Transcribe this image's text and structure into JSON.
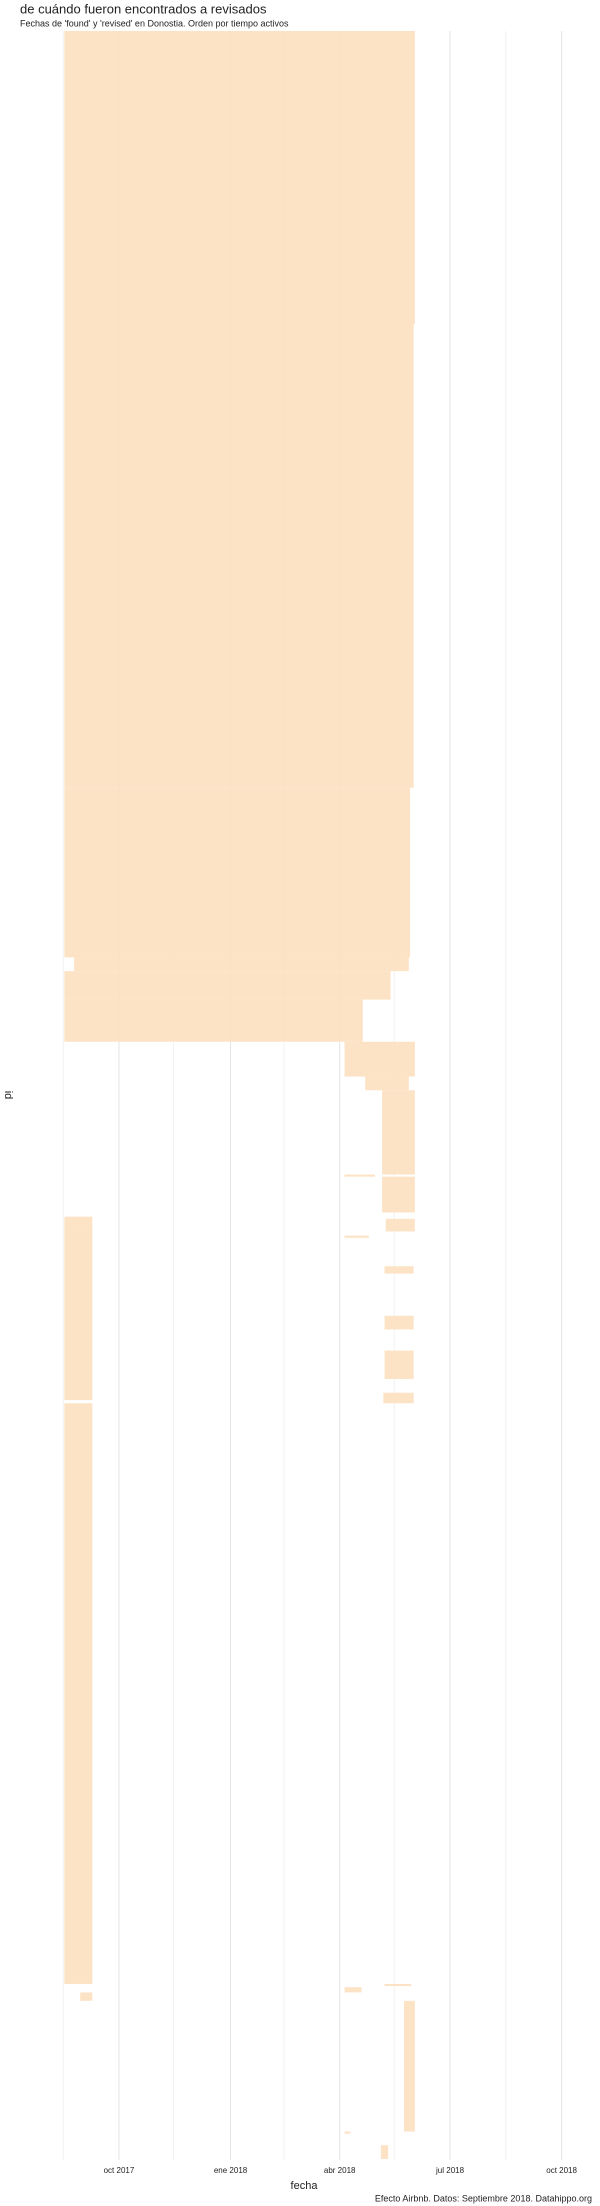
{
  "chart_data": {
    "type": "range",
    "title": "de cuándo fueron encontrados a revisados",
    "subtitle": "Fechas de 'found' y 'revised' en Donostia. Orden por tiempo activos",
    "x_label": "fecha",
    "y_label": "id",
    "caption": "Efecto Airbnb. Datos: Septiembre 2018. Datahippo.org",
    "color": "#fde0bf",
    "xlim": [
      "2017-08-01",
      "2018-10-31"
    ],
    "xticks": [
      {
        "value": "2017-10-01",
        "label": "oct 2017"
      },
      {
        "value": "2018-01-01",
        "label": "ene 2018"
      },
      {
        "value": "2018-04-01",
        "label": "abr 2018"
      },
      {
        "value": "2018-07-01",
        "label": "jul 2018"
      },
      {
        "value": "2018-10-01",
        "label": "oct 2018"
      }
    ],
    "xminor": [
      "2017-08-16",
      "2017-11-15",
      "2018-02-14",
      "2018-05-16",
      "2018-08-16"
    ],
    "ylim": [
      0,
      2020
    ],
    "grid": true,
    "segments": [
      {
        "from_id": 0,
        "to_id": 278,
        "start": "2017-08-17",
        "end": "2018-06-02"
      },
      {
        "from_id": 278,
        "to_id": 718,
        "start": "2017-08-17",
        "end": "2018-06-01"
      },
      {
        "from_id": 718,
        "to_id": 879,
        "start": "2017-08-17",
        "end": "2018-05-29"
      },
      {
        "from_id": 879,
        "to_id": 892,
        "start": "2017-08-25",
        "end": "2018-05-28"
      },
      {
        "from_id": 892,
        "to_id": 919,
        "start": "2017-08-17",
        "end": "2018-05-13"
      },
      {
        "from_id": 919,
        "to_id": 959,
        "start": "2017-08-17",
        "end": "2018-04-20"
      },
      {
        "from_id": 959,
        "to_id": 992,
        "start": "2018-04-05",
        "end": "2018-06-02"
      },
      {
        "from_id": 992,
        "to_id": 1005,
        "start": "2018-04-22",
        "end": "2018-05-28"
      },
      {
        "from_id": 1005,
        "to_id": 1085,
        "start": "2018-05-06",
        "end": "2018-06-02"
      },
      {
        "from_id": 1085,
        "to_id": 1087,
        "start": "2018-04-05",
        "end": "2018-04-30"
      },
      {
        "from_id": 1087,
        "to_id": 1121,
        "start": "2018-05-06",
        "end": "2018-06-02"
      },
      {
        "from_id": 1125,
        "to_id": 1132,
        "start": "2017-08-17",
        "end": "2017-09-09"
      },
      {
        "from_id": 1127,
        "to_id": 1139,
        "start": "2018-05-09",
        "end": "2018-06-02"
      },
      {
        "from_id": 1132,
        "to_id": 1299,
        "start": "2017-08-17",
        "end": "2017-09-09"
      },
      {
        "from_id": 1143,
        "to_id": 1145,
        "start": "2018-04-05",
        "end": "2018-04-25"
      },
      {
        "from_id": 1172,
        "to_id": 1179,
        "start": "2018-05-08",
        "end": "2018-06-01"
      },
      {
        "from_id": 1219,
        "to_id": 1232,
        "start": "2018-05-08",
        "end": "2018-06-01"
      },
      {
        "from_id": 1252,
        "to_id": 1279,
        "start": "2018-05-08",
        "end": "2018-06-01"
      },
      {
        "from_id": 1292,
        "to_id": 1302,
        "start": "2018-05-07",
        "end": "2018-06-01"
      },
      {
        "from_id": 1302,
        "to_id": 1853,
        "start": "2017-08-17",
        "end": "2017-09-09"
      },
      {
        "from_id": 1853,
        "to_id": 1855,
        "start": "2018-05-08",
        "end": "2018-05-30"
      },
      {
        "from_id": 1856,
        "to_id": 1861,
        "start": "2018-04-05",
        "end": "2018-04-19"
      },
      {
        "from_id": 1861,
        "to_id": 1869,
        "start": "2017-08-30",
        "end": "2017-09-09"
      },
      {
        "from_id": 1869,
        "to_id": 1993,
        "start": "2018-05-24",
        "end": "2018-06-02"
      },
      {
        "from_id": 1993,
        "to_id": 1995,
        "start": "2018-04-05",
        "end": "2018-04-10"
      },
      {
        "from_id": 2006,
        "to_id": 2019,
        "start": "2018-05-05",
        "end": "2018-05-11"
      }
    ]
  }
}
